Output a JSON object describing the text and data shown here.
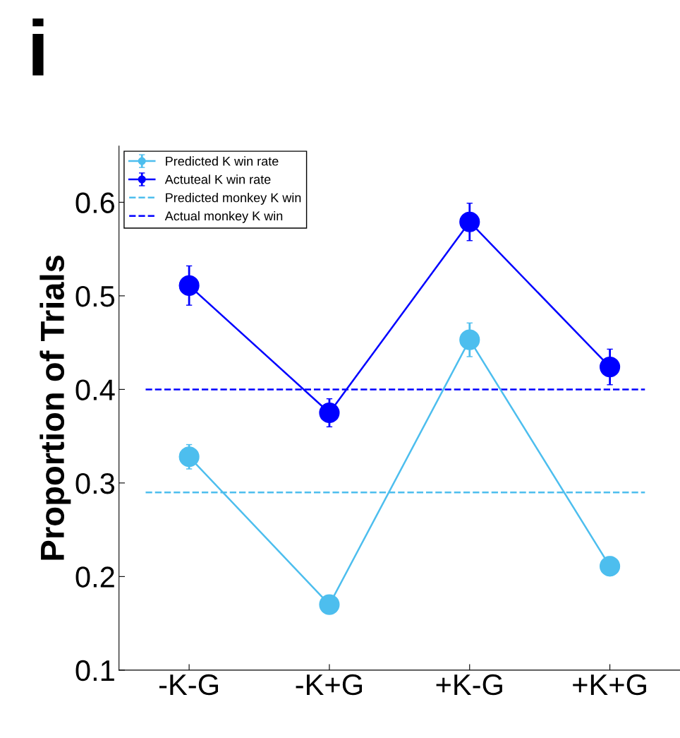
{
  "chart_data": {
    "type": "line",
    "ylabel": "Proportion of Trials",
    "annotations": [
      "i"
    ],
    "categories": [
      "-K-G",
      "-K+G",
      "+K-G",
      "+K+G"
    ],
    "series": [
      {
        "name": "Predicted K win rate",
        "color": "#4dbeee",
        "values": [
          0.328,
          0.17,
          0.453,
          0.211
        ],
        "errors": [
          0.013,
          0.003,
          0.018,
          0.01
        ]
      },
      {
        "name": "Actuteal K win rate",
        "color": "#0000ff",
        "values": [
          0.511,
          0.375,
          0.579,
          0.424
        ],
        "errors": [
          0.021,
          0.015,
          0.02,
          0.019
        ]
      }
    ],
    "ref_lines": [
      {
        "axis": "y",
        "value": 0.29,
        "label": "Predicted monkey K win",
        "color": "#4dbeee",
        "line_style": "dashed"
      },
      {
        "axis": "y",
        "value": 0.4,
        "label": "Actual monkey K win",
        "color": "#0000ff",
        "line_style": "dashed"
      }
    ],
    "ylim": [
      0.1,
      0.66
    ],
    "yticks": [
      0.1,
      0.2,
      0.3,
      0.4,
      0.5,
      0.6
    ],
    "marker": "circle",
    "line_style": "solid",
    "legend": "top left",
    "grid": false
  }
}
